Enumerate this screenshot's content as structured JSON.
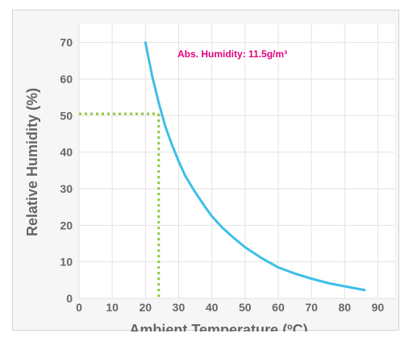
{
  "chart_data": {
    "type": "line",
    "title": "",
    "xlabel": "Ambient Temperature (ºC)",
    "ylabel": "Relative Humidity (%)",
    "xlim": [
      0,
      95
    ],
    "ylim": [
      0,
      75
    ],
    "x_ticks": [
      "0",
      "10",
      "20",
      "30",
      "40",
      "50",
      "60",
      "70",
      "80",
      "90"
    ],
    "y_ticks": [
      "0",
      "10",
      "20",
      "30",
      "40",
      "50",
      "60",
      "70"
    ],
    "grid": true,
    "series": [
      {
        "color": "#3dbfe8",
        "x": [
          20,
          22,
          24,
          26,
          28,
          30,
          32,
          35,
          38,
          40,
          43,
          46,
          50,
          55,
          60,
          65,
          70,
          75,
          80,
          86
        ],
        "y": [
          70,
          61,
          53.5,
          47,
          42,
          37.5,
          33.5,
          29,
          25,
          22.5,
          19.5,
          17,
          14,
          11,
          8.5,
          6.8,
          5.4,
          4.2,
          3.3,
          2.3
        ]
      }
    ],
    "reference": {
      "x": 24,
      "y": 50.5,
      "color": "#8dc63f"
    },
    "annotation": {
      "text": "Abs. Humidity: 11.5g/m³",
      "color": "#e3007e"
    }
  }
}
